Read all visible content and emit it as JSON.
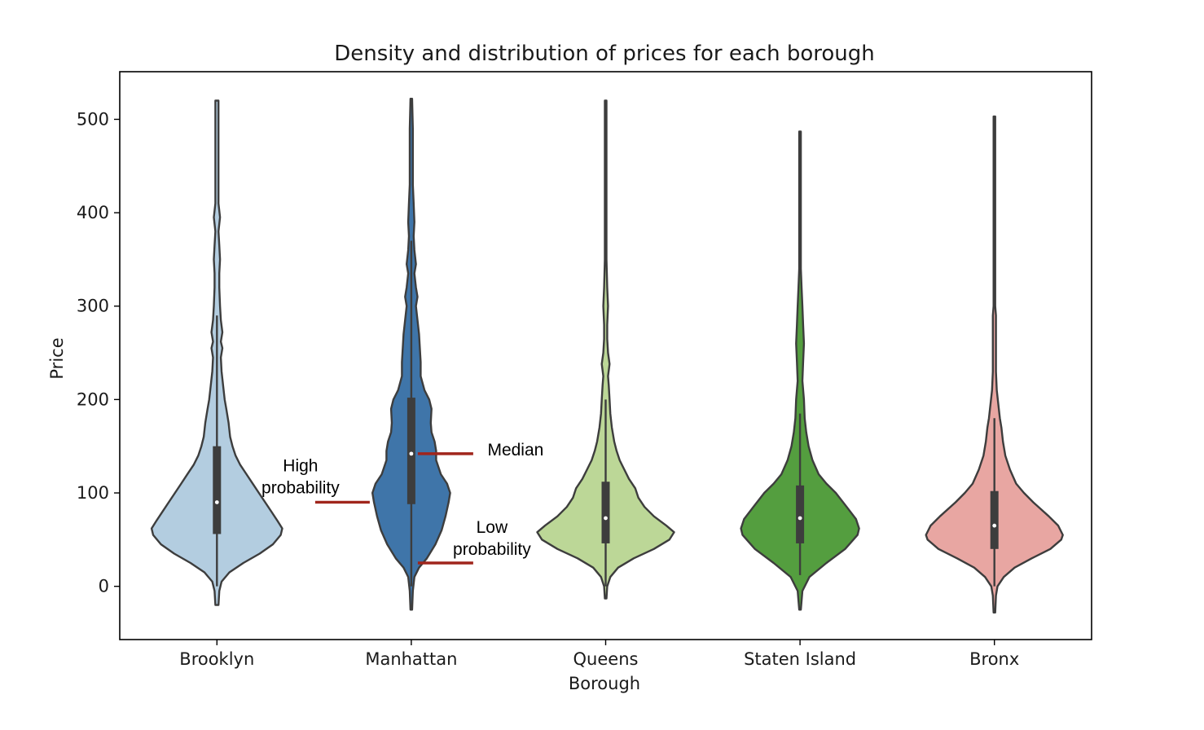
{
  "chart_data": {
    "type": "violin",
    "title": "Density and distribution of prices for each borough",
    "xlabel": "Borough",
    "ylabel": "Price",
    "ylim": [
      -57,
      551
    ],
    "yticks": [
      0,
      100,
      200,
      300,
      400,
      500
    ],
    "grid": false,
    "categories": [
      "Brooklyn",
      "Manhattan",
      "Queens",
      "Staten Island",
      "Bronx"
    ],
    "series": [
      {
        "category": "Brooklyn",
        "color": "#b3cde0",
        "median": 90,
        "q1": 56,
        "q3": 150,
        "whisker_low": 0,
        "whisker_high": 290,
        "kde_min": -20,
        "kde_max": 520,
        "profile": [
          [
            -20,
            0.02
          ],
          [
            -5,
            0.03
          ],
          [
            5,
            0.06
          ],
          [
            15,
            0.16
          ],
          [
            25,
            0.34
          ],
          [
            35,
            0.55
          ],
          [
            45,
            0.72
          ],
          [
            55,
            0.82
          ],
          [
            62,
            0.84
          ],
          [
            70,
            0.78
          ],
          [
            80,
            0.7
          ],
          [
            90,
            0.62
          ],
          [
            100,
            0.54
          ],
          [
            110,
            0.46
          ],
          [
            120,
            0.38
          ],
          [
            130,
            0.3
          ],
          [
            140,
            0.24
          ],
          [
            150,
            0.2
          ],
          [
            160,
            0.17
          ],
          [
            175,
            0.15
          ],
          [
            190,
            0.12
          ],
          [
            200,
            0.1
          ],
          [
            215,
            0.08
          ],
          [
            230,
            0.06
          ],
          [
            245,
            0.05
          ],
          [
            255,
            0.07
          ],
          [
            262,
            0.05
          ],
          [
            272,
            0.07
          ],
          [
            285,
            0.05
          ],
          [
            300,
            0.04
          ],
          [
            320,
            0.03
          ],
          [
            335,
            0.03
          ],
          [
            350,
            0.04
          ],
          [
            365,
            0.03
          ],
          [
            380,
            0.02
          ],
          [
            395,
            0.04
          ],
          [
            410,
            0.02
          ],
          [
            430,
            0.02
          ],
          [
            460,
            0.02
          ],
          [
            490,
            0.02
          ],
          [
            520,
            0.02
          ]
        ]
      },
      {
        "category": "Manhattan",
        "color": "#3f75a9",
        "median": 142,
        "q1": 88,
        "q3": 202,
        "whisker_low": 0,
        "whisker_high": 370,
        "kde_min": -25,
        "kde_max": 522,
        "profile": [
          [
            -25,
            0.01
          ],
          [
            -5,
            0.02
          ],
          [
            10,
            0.04
          ],
          [
            20,
            0.1
          ],
          [
            30,
            0.2
          ],
          [
            45,
            0.31
          ],
          [
            60,
            0.39
          ],
          [
            75,
            0.44
          ],
          [
            90,
            0.48
          ],
          [
            100,
            0.5
          ],
          [
            110,
            0.46
          ],
          [
            120,
            0.38
          ],
          [
            135,
            0.32
          ],
          [
            145,
            0.32
          ],
          [
            155,
            0.3
          ],
          [
            165,
            0.26
          ],
          [
            175,
            0.25
          ],
          [
            190,
            0.26
          ],
          [
            200,
            0.23
          ],
          [
            210,
            0.17
          ],
          [
            225,
            0.12
          ],
          [
            240,
            0.12
          ],
          [
            255,
            0.11
          ],
          [
            270,
            0.1
          ],
          [
            285,
            0.08
          ],
          [
            300,
            0.06
          ],
          [
            310,
            0.08
          ],
          [
            320,
            0.06
          ],
          [
            335,
            0.04
          ],
          [
            345,
            0.06
          ],
          [
            360,
            0.04
          ],
          [
            375,
            0.03
          ],
          [
            390,
            0.04
          ],
          [
            410,
            0.03
          ],
          [
            430,
            0.02
          ],
          [
            460,
            0.02
          ],
          [
            490,
            0.02
          ],
          [
            522,
            0.01
          ]
        ]
      },
      {
        "category": "Queens",
        "color": "#bcd797",
        "median": 73,
        "q1": 46,
        "q3": 112,
        "whisker_low": 0,
        "whisker_high": 200,
        "kde_min": -13,
        "kde_max": 520,
        "profile": [
          [
            -13,
            0.01
          ],
          [
            0,
            0.02
          ],
          [
            10,
            0.06
          ],
          [
            20,
            0.16
          ],
          [
            30,
            0.36
          ],
          [
            40,
            0.62
          ],
          [
            50,
            0.82
          ],
          [
            58,
            0.88
          ],
          [
            65,
            0.78
          ],
          [
            75,
            0.62
          ],
          [
            85,
            0.5
          ],
          [
            95,
            0.42
          ],
          [
            105,
            0.38
          ],
          [
            115,
            0.3
          ],
          [
            125,
            0.24
          ],
          [
            135,
            0.18
          ],
          [
            145,
            0.14
          ],
          [
            155,
            0.11
          ],
          [
            170,
            0.08
          ],
          [
            185,
            0.06
          ],
          [
            200,
            0.05
          ],
          [
            215,
            0.04
          ],
          [
            225,
            0.03
          ],
          [
            238,
            0.05
          ],
          [
            250,
            0.03
          ],
          [
            265,
            0.02
          ],
          [
            280,
            0.02
          ],
          [
            300,
            0.03
          ],
          [
            320,
            0.02
          ],
          [
            350,
            0.01
          ],
          [
            400,
            0.01
          ],
          [
            450,
            0.01
          ],
          [
            520,
            0.01
          ]
        ]
      },
      {
        "category": "Staten Island",
        "color": "#549e3f",
        "median": 73,
        "q1": 46,
        "q3": 108,
        "whisker_low": 12,
        "whisker_high": 185,
        "kde_min": -25,
        "kde_max": 487,
        "profile": [
          [
            -25,
            0.01
          ],
          [
            -5,
            0.03
          ],
          [
            10,
            0.12
          ],
          [
            25,
            0.34
          ],
          [
            40,
            0.58
          ],
          [
            55,
            0.74
          ],
          [
            62,
            0.76
          ],
          [
            72,
            0.72
          ],
          [
            85,
            0.6
          ],
          [
            100,
            0.46
          ],
          [
            110,
            0.34
          ],
          [
            120,
            0.24
          ],
          [
            135,
            0.16
          ],
          [
            150,
            0.11
          ],
          [
            165,
            0.08
          ],
          [
            180,
            0.06
          ],
          [
            200,
            0.05
          ],
          [
            220,
            0.03
          ],
          [
            240,
            0.04
          ],
          [
            260,
            0.05
          ],
          [
            280,
            0.04
          ],
          [
            300,
            0.03
          ],
          [
            320,
            0.02
          ],
          [
            340,
            0.01
          ],
          [
            370,
            0.01
          ],
          [
            420,
            0.01
          ],
          [
            487,
            0.01
          ]
        ]
      },
      {
        "category": "Bronx",
        "color": "#e8a6a2",
        "median": 65,
        "q1": 40,
        "q3": 102,
        "whisker_low": 0,
        "whisker_high": 180,
        "kde_min": -28,
        "kde_max": 503,
        "profile": [
          [
            -28,
            0.01
          ],
          [
            -10,
            0.02
          ],
          [
            0,
            0.04
          ],
          [
            10,
            0.12
          ],
          [
            20,
            0.26
          ],
          [
            30,
            0.48
          ],
          [
            40,
            0.72
          ],
          [
            50,
            0.86
          ],
          [
            55,
            0.88
          ],
          [
            65,
            0.82
          ],
          [
            75,
            0.7
          ],
          [
            90,
            0.5
          ],
          [
            100,
            0.38
          ],
          [
            110,
            0.28
          ],
          [
            125,
            0.2
          ],
          [
            140,
            0.14
          ],
          [
            155,
            0.11
          ],
          [
            170,
            0.09
          ],
          [
            180,
            0.07
          ],
          [
            195,
            0.05
          ],
          [
            210,
            0.03
          ],
          [
            230,
            0.02
          ],
          [
            260,
            0.02
          ],
          [
            290,
            0.02
          ],
          [
            300,
            0.01
          ],
          [
            330,
            0.01
          ],
          [
            380,
            0.01
          ],
          [
            450,
            0.01
          ],
          [
            503,
            0.01
          ]
        ]
      }
    ],
    "annotations": [
      {
        "text_lines": [
          "High",
          "probability"
        ],
        "target_category": "Manhattan",
        "value": 90
      },
      {
        "text_lines": [
          "Median"
        ],
        "target_category": "Manhattan",
        "value": 142
      },
      {
        "text_lines": [
          "Low",
          "probability"
        ],
        "target_category": "Manhattan",
        "value": 25
      }
    ],
    "annotation_color": "#a0251c"
  }
}
